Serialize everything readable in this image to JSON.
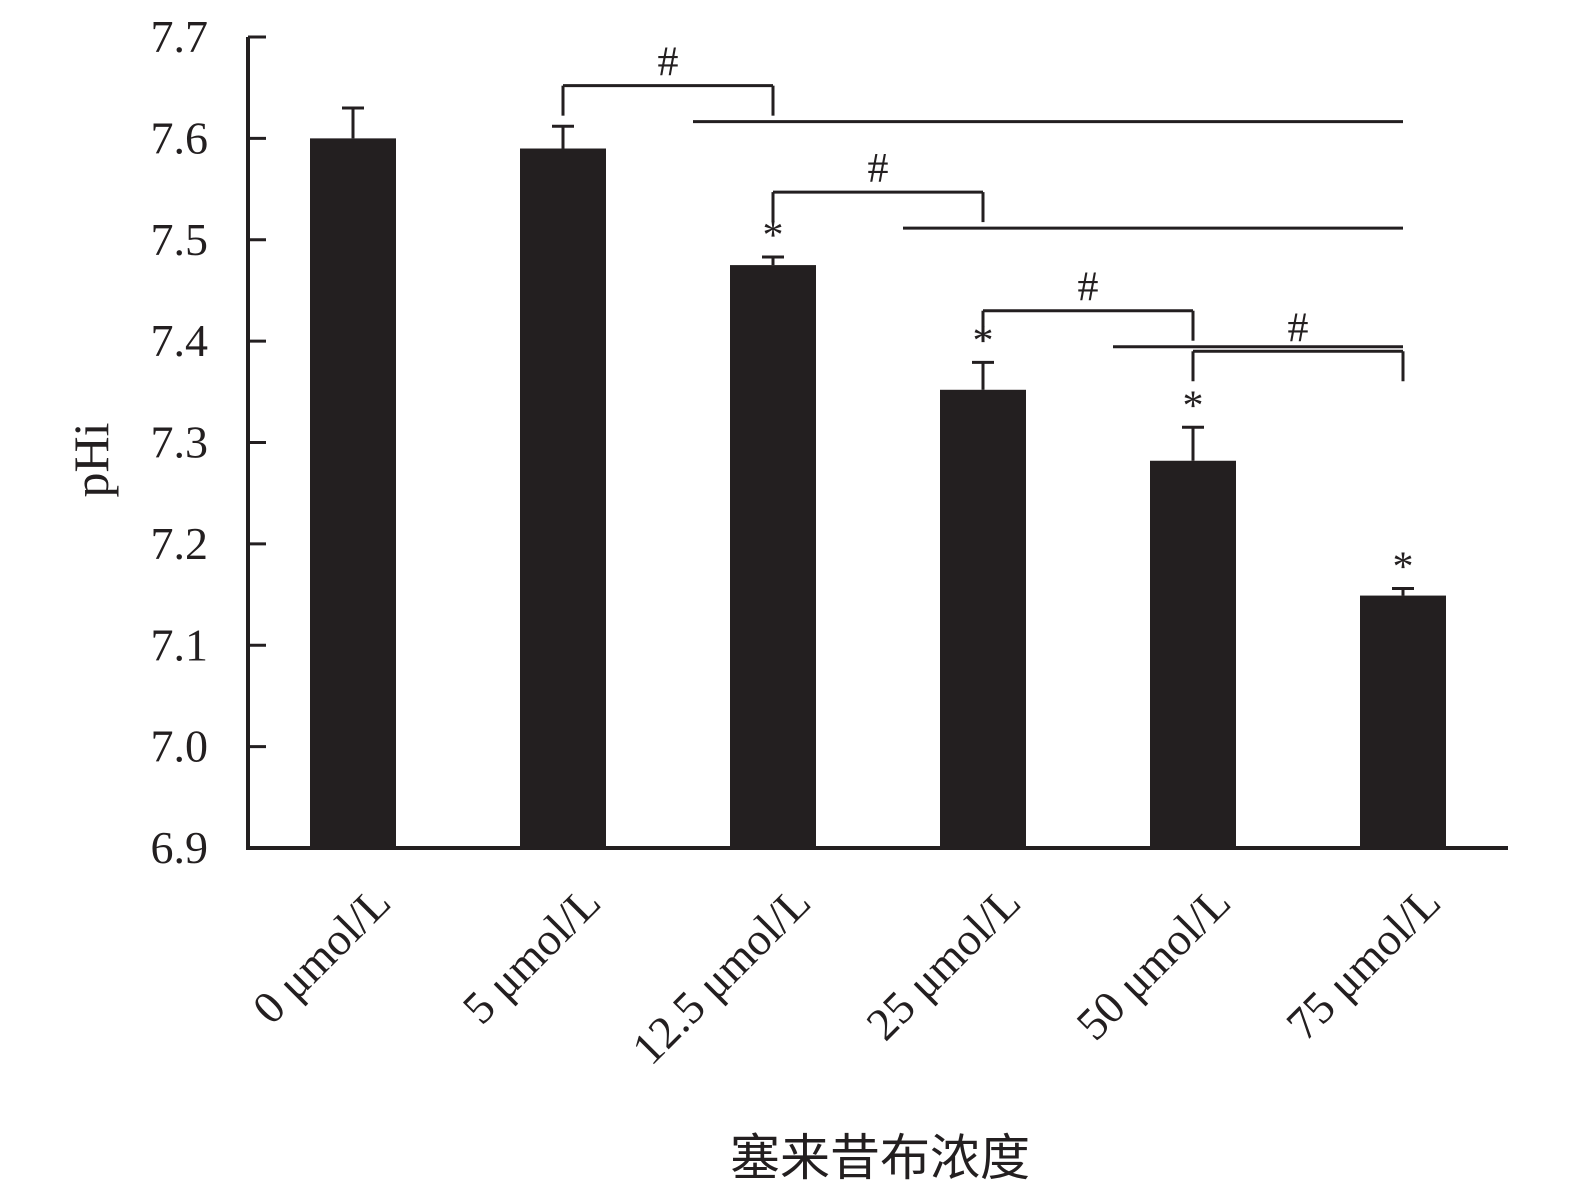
{
  "chart_data": {
    "type": "bar",
    "title": "",
    "xlabel": "塞来昔布浓度",
    "ylabel": "pHi",
    "ylim": [
      6.9,
      7.7
    ],
    "yticks": [
      "6.9",
      "7.0",
      "7.1",
      "7.2",
      "7.3",
      "7.4",
      "7.5",
      "7.6",
      "7.7"
    ],
    "categories": [
      "0 μmol/L",
      "5 μmol/L",
      "12.5 μmol/L",
      "25 μmol/L",
      "50 μmol/L",
      "75 μmol/L"
    ],
    "values": [
      7.6,
      7.59,
      7.475,
      7.352,
      7.282,
      7.149
    ],
    "errors": [
      0.03,
      0.022,
      0.008,
      0.027,
      0.033,
      0.007
    ],
    "significance": [
      "",
      "",
      "*",
      "*",
      "*",
      "*"
    ],
    "comparisons": [
      {
        "label": "#",
        "from": 1,
        "to_group": [
          2,
          3,
          4,
          5
        ],
        "level": 7.652
      },
      {
        "label": "#",
        "from": 2,
        "to_group": [
          3,
          4,
          5
        ],
        "level": 7.547
      },
      {
        "label": "#",
        "from": 3,
        "to_group": [
          4,
          5
        ],
        "level": 7.43
      },
      {
        "label": "#",
        "from": 4,
        "to_group": [
          5
        ],
        "level": 7.39
      }
    ],
    "grid": false,
    "legend": "none",
    "bar_color": "#231f20"
  }
}
